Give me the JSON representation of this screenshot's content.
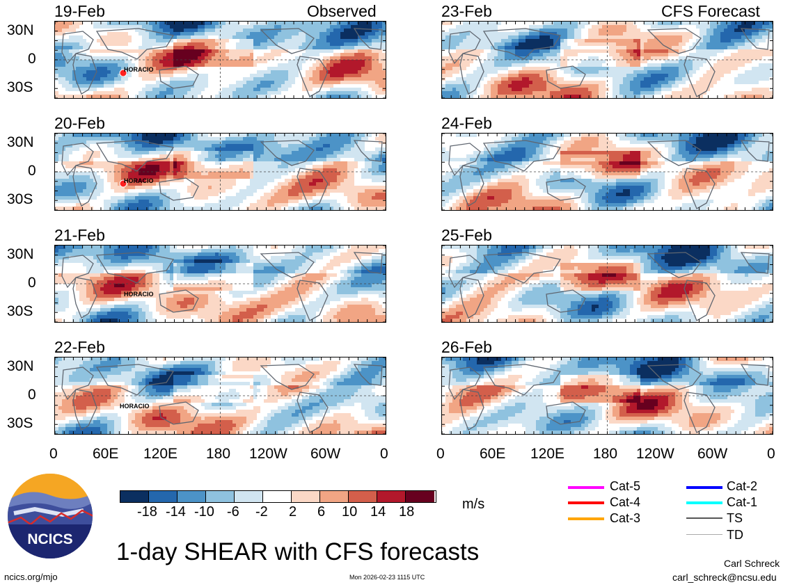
{
  "panels_left": {
    "header_right": "Observed",
    "dates": [
      "19-Feb",
      "20-Feb",
      "21-Feb",
      "22-Feb"
    ],
    "storm_label": "HORACIO"
  },
  "panels_right": {
    "header_right": "CFS Forecast",
    "dates": [
      "23-Feb",
      "24-Feb",
      "25-Feb",
      "26-Feb"
    ]
  },
  "lat_labels": [
    "30N",
    "0",
    "30S"
  ],
  "lon_labels": [
    "0",
    "60E",
    "120E",
    "180",
    "120W",
    "60W",
    "0"
  ],
  "colorbar": {
    "ticks": [
      "-18",
      "-14",
      "-10",
      "-6",
      "-2",
      "2",
      "6",
      "10",
      "14",
      "18"
    ],
    "unit": "m/s",
    "colors": [
      "#0b2f60",
      "#2467ad",
      "#4c93c7",
      "#8fc2df",
      "#d1e5f1",
      "#ffffff",
      "#fbd8c6",
      "#f1a584",
      "#d35f4b",
      "#b2182b",
      "#67001f"
    ]
  },
  "legend": {
    "items": [
      {
        "label": "Cat-5",
        "color": "#ff00ff"
      },
      {
        "label": "Cat-4",
        "color": "#ff0000"
      },
      {
        "label": "Cat-3",
        "color": "#ffa500"
      },
      {
        "label": "Cat-2",
        "color": "#0000ff"
      },
      {
        "label": "Cat-1",
        "color": "#00ffff"
      },
      {
        "label": "TS",
        "color": "#555555"
      },
      {
        "label": "TD",
        "color": "#aaaaaa"
      }
    ]
  },
  "logo": {
    "text": "NCICS"
  },
  "title": "1-day SHEAR with CFS forecasts",
  "footer": {
    "url": "ncics.org/mjo",
    "timestamp": "Mon 2026-02-23 1115 UTC",
    "author": "Carl Schreck",
    "email": "carl_schreck@ncsu.edu"
  }
}
